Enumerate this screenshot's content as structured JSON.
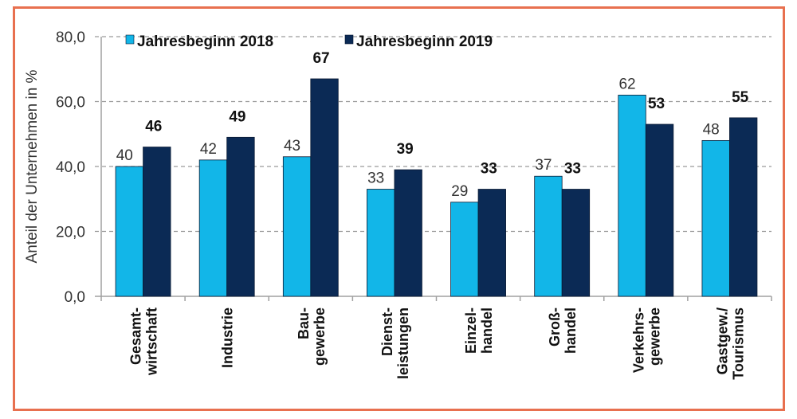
{
  "chart_data": {
    "type": "bar",
    "title": "",
    "xlabel": "",
    "ylabel": "Anteil der Unternehmen in %",
    "ylim": [
      0,
      80
    ],
    "yticks": [
      0,
      20,
      40,
      60,
      80
    ],
    "ytick_labels": [
      "0,0",
      "20,0",
      "40,0",
      "60,0",
      "80,0"
    ],
    "grid": true,
    "legend_position": "top",
    "categories": [
      [
        "Gesamt-",
        "wirtschaft"
      ],
      [
        "Industrie"
      ],
      [
        "Bau-",
        "gewerbe"
      ],
      [
        "Dienst-",
        "leistungen"
      ],
      [
        "Einzel-",
        "handel"
      ],
      [
        "Groß-",
        "handel"
      ],
      [
        "Verkehrs-",
        "gewerbe"
      ],
      [
        "Gastgew./",
        "Tourismus"
      ]
    ],
    "series": [
      {
        "name": "Jahresbeginn 2018",
        "color": "#12B6E8",
        "values": [
          40,
          42,
          43,
          33,
          29,
          37,
          62,
          48
        ]
      },
      {
        "name": "Jahresbeginn 2019",
        "color": "#0B2A55",
        "values": [
          46,
          49,
          67,
          39,
          33,
          33,
          53,
          55
        ]
      }
    ]
  },
  "frame": {
    "border_color": "#E8704F"
  }
}
